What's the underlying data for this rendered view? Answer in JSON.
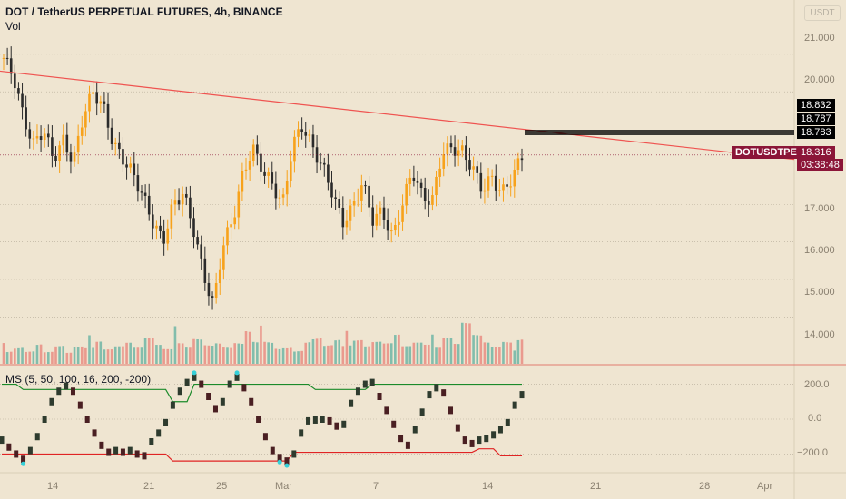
{
  "header": {
    "title": "DOT / TetherUS PERPETUAL FUTURES, 4h, BINANCE",
    "vol_label": "Vol",
    "indicator_label": "MS (5, 50, 100, 16, 200, -200)",
    "currency_button": "USDT"
  },
  "price_axis": {
    "ticks": [
      "21.000",
      "20.000",
      "19.000",
      "18.000",
      "17.000",
      "16.000",
      "15.000",
      "14.000"
    ],
    "price_min": 13.5,
    "price_max": 21.6
  },
  "indicator_axis": {
    "ticks": [
      "200.0",
      "0.0",
      "−200.0"
    ],
    "min": -260,
    "max": 260
  },
  "time_axis": {
    "ticks": [
      "14",
      "21",
      "25",
      "Mar",
      "7",
      "14",
      "21",
      "28",
      "Apr"
    ]
  },
  "labels": {
    "level_1": "18.832",
    "level_2": "18.787",
    "level_3": "18.783",
    "symbol": "DOTUSDTPERP",
    "last_price": "18.316",
    "countdown": "03:38:48"
  },
  "colors": {
    "up": "#f7a21b",
    "down": "#2b2b2b",
    "vol_up": "#6fb6a6",
    "vol_down": "#e98d82",
    "trendline": "#ef5350",
    "ms_upper": "#1b8a2a",
    "ms_lower": "#e02424",
    "ms_up": "#2e3b2e",
    "ms_down": "#4a1f22",
    "marker": "#35d0d8",
    "symbol_bg": "#8b1538",
    "level_bg": "#000000"
  },
  "chart_data": [
    {
      "type": "line",
      "title": "DOT / TetherUS PERPETUAL FUTURES, 4h, BINANCE",
      "series": [
        {
          "name": "price_path",
          "values": [
            20.9,
            20.4,
            19.3,
            18.6,
            19.0,
            18.2,
            18.7,
            18.1,
            19.4,
            20.0,
            19.6,
            18.6,
            18.2,
            17.8,
            17.2,
            16.5,
            16.0,
            17.0,
            17.3,
            16.4,
            15.2,
            14.3,
            15.9,
            16.6,
            17.8,
            18.5,
            17.9,
            17.5,
            17.0,
            18.6,
            19.1,
            18.5,
            18.0,
            17.3,
            16.5,
            16.9,
            17.6,
            16.6,
            16.8,
            16.1,
            17.0,
            17.9,
            17.2,
            17.1,
            18.4,
            18.5,
            18.4,
            18.0,
            17.4,
            17.7,
            17.3,
            17.7,
            18.3
          ]
        }
      ],
      "trendline": {
        "start": 20.55,
        "end": 18.2
      },
      "last_price": 18.316
    },
    {
      "type": "bar",
      "title": "Vol",
      "series": [
        {
          "name": "Vol",
          "values": [
            0.45,
            0.55,
            0.4,
            0.6,
            0.35,
            0.5,
            0.3,
            0.45,
            0.4,
            0.55,
            0.35,
            0.42,
            0.5,
            0.38,
            0.6,
            0.45,
            0.35,
            0.5,
            0.4,
            0.62,
            0.48,
            0.55,
            0.45,
            0.6,
            1.0,
            0.7,
            0.75,
            0.55,
            0.6,
            0.45,
            0.72,
            0.8,
            0.55,
            0.68,
            0.5,
            0.62,
            0.45,
            0.55,
            0.5,
            0.7,
            0.42,
            0.5,
            0.45,
            0.38,
            0.62,
            0.48,
            1.0,
            0.72,
            0.55,
            0.45,
            0.6,
            0.38,
            0.72
          ]
        }
      ]
    },
    {
      "type": "line",
      "title": "MS (5, 50, 100, 16, 200, -200)",
      "series": [
        {
          "name": "MS",
          "values": [
            -120,
            -160,
            -200,
            -230,
            -180,
            -100,
            0,
            100,
            160,
            190,
            160,
            80,
            0,
            -80,
            -150,
            -190,
            -180,
            -190,
            -180,
            -200,
            -210,
            -130,
            -80,
            -20,
            80,
            160,
            210,
            240,
            200,
            130,
            60,
            100,
            200,
            240,
            180,
            100,
            0,
            -100,
            -180,
            -220,
            -240,
            -200,
            -80,
            -10,
            -5,
            0,
            -10,
            -40,
            -30,
            90,
            160,
            200,
            210,
            130,
            50,
            -30,
            -110,
            -150,
            -60,
            40,
            140,
            180,
            150,
            50,
            -50,
            -120,
            -140,
            -120,
            -110,
            -90,
            -60,
            -20,
            80,
            140
          ],
          "upper_band": [
            200,
            200,
            200,
            170,
            170,
            170,
            170,
            170,
            170,
            170,
            170,
            170,
            170,
            170,
            170,
            170,
            170,
            170,
            170,
            170,
            170,
            170,
            170,
            170,
            100,
            100,
            100,
            200,
            200,
            200,
            200,
            200,
            200,
            200,
            200,
            200,
            200,
            200,
            200,
            200,
            200,
            200,
            200,
            200,
            170,
            170,
            170,
            170,
            170,
            170,
            170,
            170,
            200,
            200,
            200,
            200,
            200,
            200,
            200,
            200,
            200,
            200,
            200,
            200,
            200,
            200,
            200,
            200,
            200,
            200,
            200,
            200,
            200,
            200
          ],
          "lower_band": [
            -200,
            -200,
            -200,
            -200,
            -200,
            -200,
            -200,
            -200,
            -200,
            -200,
            -200,
            -200,
            -200,
            -200,
            -200,
            -200,
            -200,
            -200,
            -200,
            -200,
            -200,
            -200,
            -200,
            -200,
            -240,
            -240,
            -240,
            -240,
            -240,
            -240,
            -240,
            -240,
            -240,
            -240,
            -240,
            -240,
            -240,
            -240,
            -240,
            -240,
            -240,
            -190,
            -190,
            -190,
            -190,
            -190,
            -190,
            -190,
            -190,
            -190,
            -190,
            -190,
            -190,
            -190,
            -190,
            -190,
            -190,
            -190,
            -190,
            -190,
            -190,
            -190,
            -190,
            -190,
            -190,
            -190,
            -190,
            -170,
            -170,
            -170,
            -210,
            -210,
            -210,
            -210
          ]
        }
      ],
      "ylim": [
        -260,
        260
      ]
    }
  ]
}
